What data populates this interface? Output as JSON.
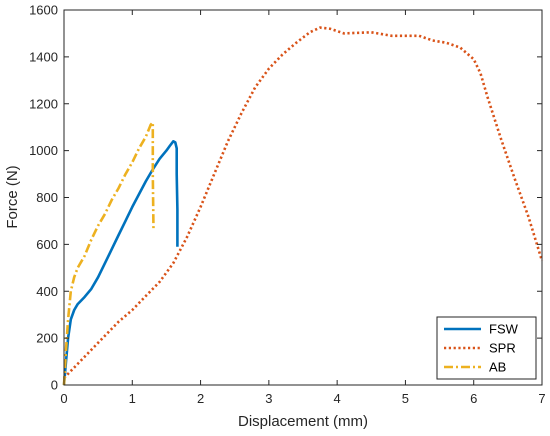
{
  "chart_data": {
    "type": "line",
    "title": "",
    "xlabel": "Displacement (mm)",
    "ylabel": "Force (N)",
    "xlim": [
      0,
      7
    ],
    "ylim": [
      0,
      1600
    ],
    "xticks": [
      0,
      1,
      2,
      3,
      4,
      5,
      6,
      7
    ],
    "yticks": [
      0,
      200,
      400,
      600,
      800,
      1000,
      1200,
      1400,
      1600
    ],
    "grid": false,
    "legend_position": "bottom-right",
    "series": [
      {
        "name": "FSW",
        "color": "#0072BD",
        "style": "solid",
        "points": [
          [
            0,
            0
          ],
          [
            0.03,
            100
          ],
          [
            0.06,
            200
          ],
          [
            0.1,
            280
          ],
          [
            0.15,
            320
          ],
          [
            0.2,
            345
          ],
          [
            0.3,
            375
          ],
          [
            0.4,
            410
          ],
          [
            0.5,
            460
          ],
          [
            0.6,
            520
          ],
          [
            0.7,
            580
          ],
          [
            0.8,
            640
          ],
          [
            0.9,
            700
          ],
          [
            1.0,
            760
          ],
          [
            1.1,
            815
          ],
          [
            1.2,
            870
          ],
          [
            1.3,
            920
          ],
          [
            1.4,
            965
          ],
          [
            1.5,
            1000
          ],
          [
            1.55,
            1020
          ],
          [
            1.6,
            1040
          ],
          [
            1.63,
            1035
          ],
          [
            1.65,
            1010
          ],
          [
            1.65,
            900
          ],
          [
            1.66,
            750
          ],
          [
            1.66,
            590
          ]
        ]
      },
      {
        "name": "SPR",
        "color": "#D95319",
        "style": "dotted",
        "points": [
          [
            0,
            30
          ],
          [
            0.2,
            90
          ],
          [
            0.5,
            180
          ],
          [
            0.8,
            270
          ],
          [
            1.0,
            320
          ],
          [
            1.2,
            380
          ],
          [
            1.4,
            440
          ],
          [
            1.6,
            520
          ],
          [
            1.8,
            630
          ],
          [
            2.0,
            760
          ],
          [
            2.2,
            900
          ],
          [
            2.4,
            1040
          ],
          [
            2.6,
            1160
          ],
          [
            2.8,
            1270
          ],
          [
            3.0,
            1350
          ],
          [
            3.2,
            1410
          ],
          [
            3.4,
            1460
          ],
          [
            3.6,
            1505
          ],
          [
            3.75,
            1525
          ],
          [
            3.9,
            1520
          ],
          [
            4.1,
            1500
          ],
          [
            4.5,
            1505
          ],
          [
            4.8,
            1490
          ],
          [
            5.0,
            1490
          ],
          [
            5.2,
            1490
          ],
          [
            5.4,
            1470
          ],
          [
            5.6,
            1460
          ],
          [
            5.8,
            1440
          ],
          [
            6.0,
            1390
          ],
          [
            6.1,
            1330
          ],
          [
            6.2,
            1230
          ],
          [
            6.4,
            1050
          ],
          [
            6.6,
            880
          ],
          [
            6.8,
            720
          ],
          [
            7.0,
            530
          ]
        ]
      },
      {
        "name": "AB",
        "color": "#EDB120",
        "style": "dashdot",
        "points": [
          [
            0,
            0
          ],
          [
            0.03,
            150
          ],
          [
            0.06,
            280
          ],
          [
            0.1,
            400
          ],
          [
            0.15,
            460
          ],
          [
            0.2,
            500
          ],
          [
            0.3,
            550
          ],
          [
            0.4,
            620
          ],
          [
            0.5,
            680
          ],
          [
            0.6,
            730
          ],
          [
            0.7,
            790
          ],
          [
            0.8,
            840
          ],
          [
            0.9,
            900
          ],
          [
            1.0,
            950
          ],
          [
            1.1,
            1010
          ],
          [
            1.2,
            1060
          ],
          [
            1.27,
            1110
          ],
          [
            1.3,
            1120
          ],
          [
            1.3,
            900
          ],
          [
            1.31,
            660
          ]
        ]
      }
    ]
  }
}
